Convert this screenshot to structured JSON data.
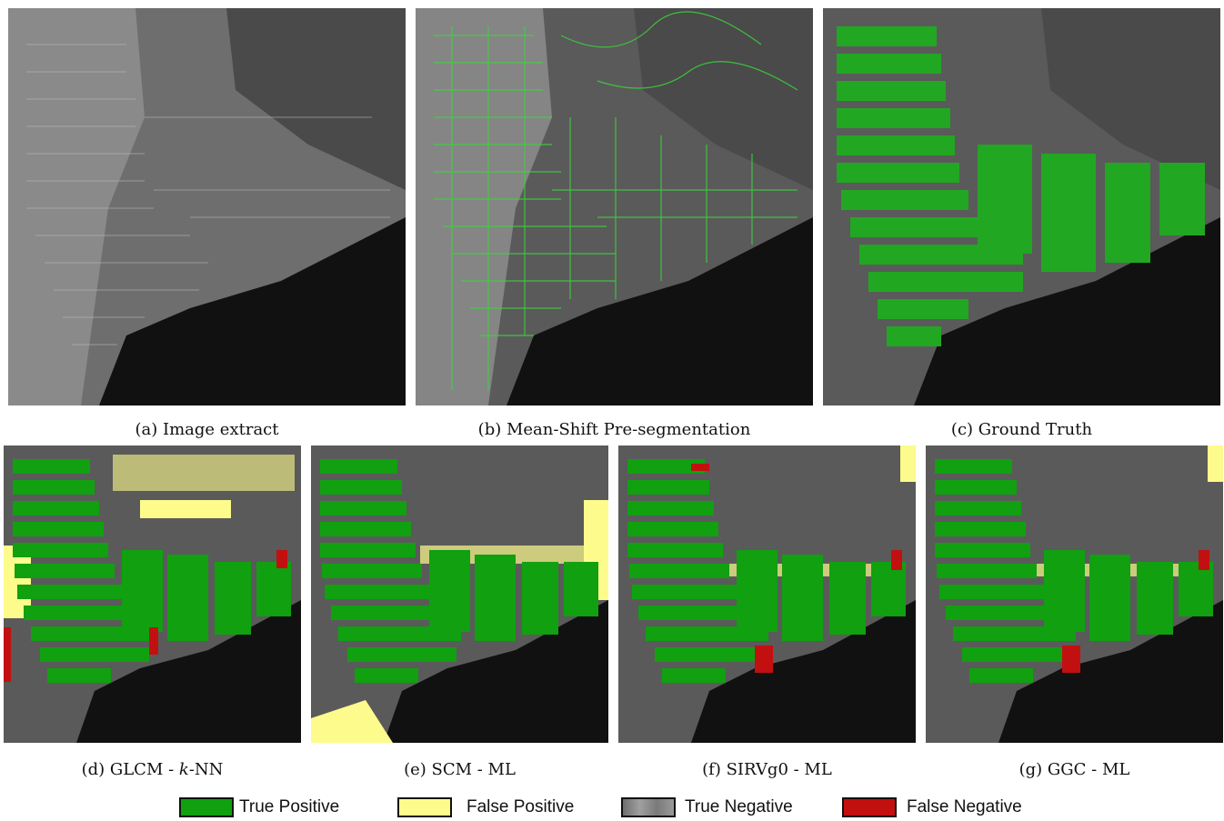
{
  "figure": {
    "panels": [
      {
        "id": "a",
        "caption": "(a) Image extract",
        "kind": "gray"
      },
      {
        "id": "b",
        "caption": "(b) Mean-Shift Pre-segmentation",
        "kind": "segmentation"
      },
      {
        "id": "c",
        "caption": "(c) Ground Truth",
        "kind": "ground-truth"
      },
      {
        "id": "d",
        "caption_pre": "(d) GLCM - ",
        "caption_italic": "k",
        "caption_post": "-NN",
        "kind": "classification"
      },
      {
        "id": "e",
        "caption": "(e) SCM - ML",
        "kind": "classification"
      },
      {
        "id": "f",
        "caption": "(f) SIRVg0 - ML",
        "kind": "classification"
      },
      {
        "id": "g",
        "caption": "(g) GGC - ML",
        "kind": "classification"
      }
    ],
    "legend": [
      {
        "label": "True Positive",
        "color": "#10a010"
      },
      {
        "label": "False Positive",
        "color": "#fdfb8c"
      },
      {
        "label": "True Negative",
        "color": "#8a8a8a"
      },
      {
        "label": "False Negative",
        "color": "#c21010"
      }
    ]
  }
}
